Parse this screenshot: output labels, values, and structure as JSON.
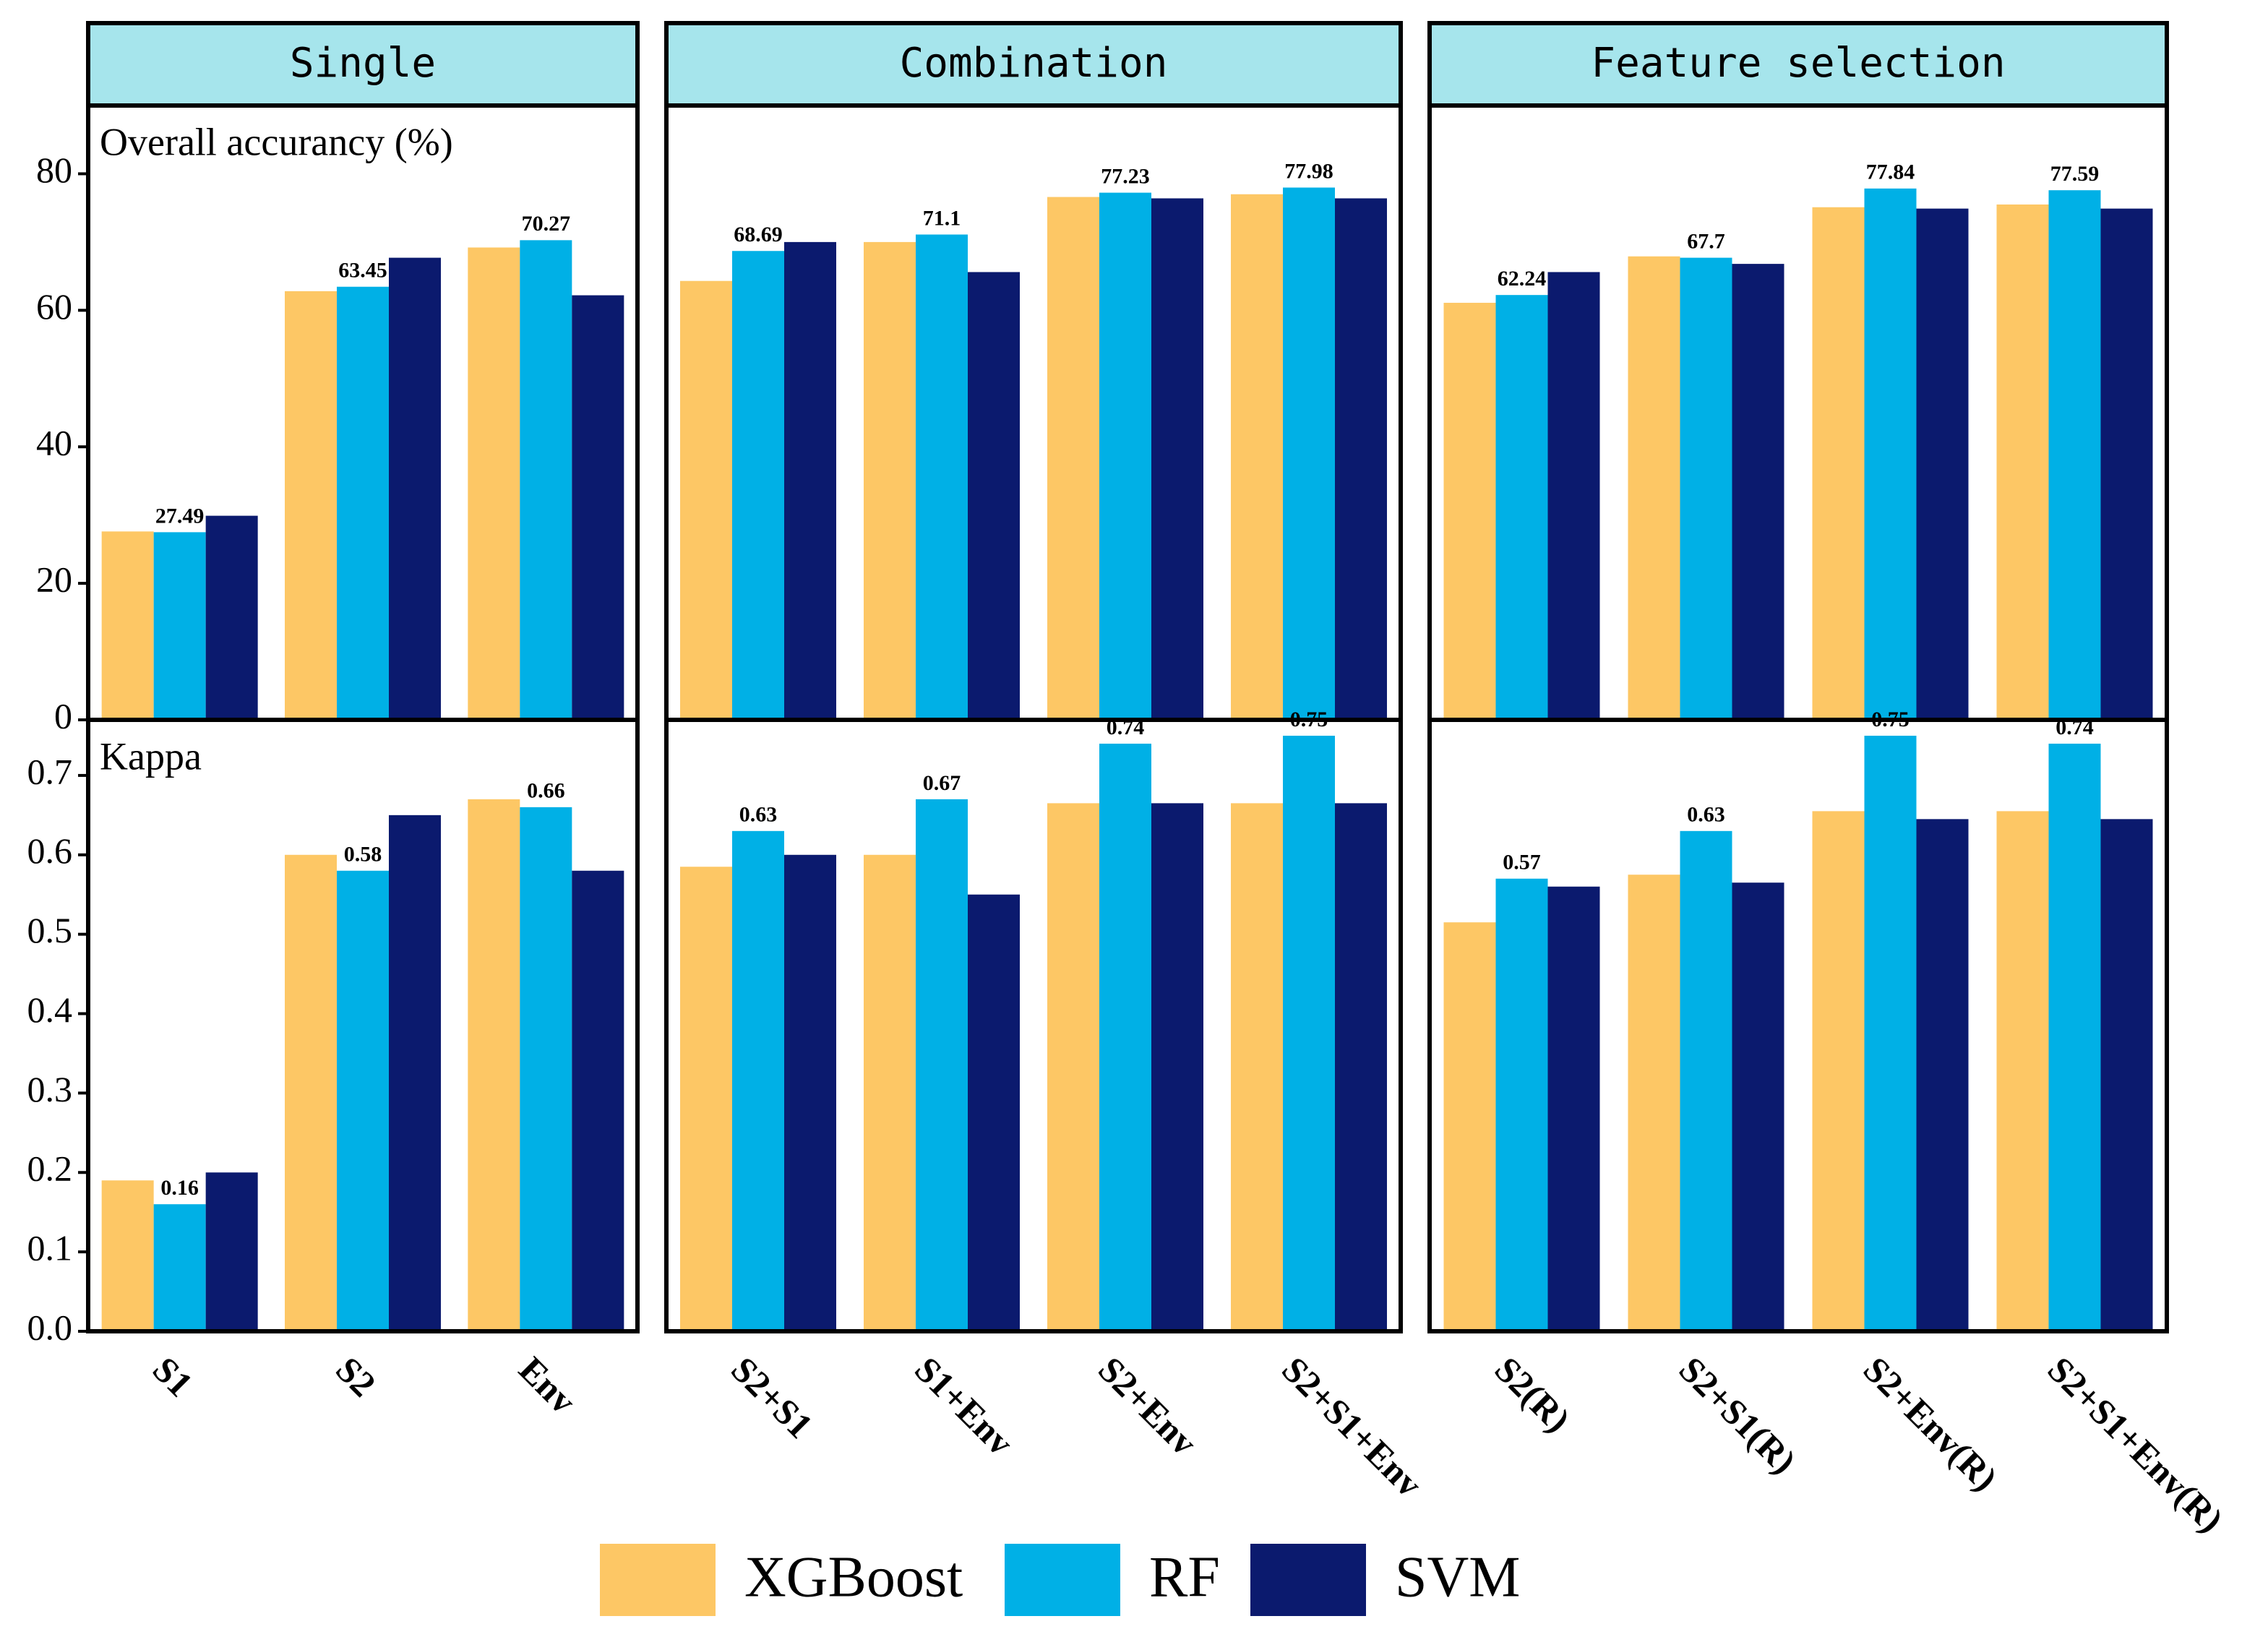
{
  "chart_data": {
    "type": "bar",
    "series": [
      {
        "name": "XGBoost",
        "color": "#fdc765"
      },
      {
        "name": "RF",
        "color": "#00b0e6"
      },
      {
        "name": "SVM",
        "color": "#0b1a6e"
      }
    ],
    "columns": [
      {
        "title": "Single",
        "categories": [
          "S1",
          "S2",
          "Env"
        ]
      },
      {
        "title": "Combination",
        "categories": [
          "S2+S1",
          "S1+Env",
          "S2+Env",
          "S2+S1+Env"
        ]
      },
      {
        "title": "Feature selection",
        "categories": [
          "S2(R)",
          "S2+S1(R)",
          "S2+Env(R)",
          "S2+S1+Env(R)"
        ]
      }
    ],
    "rows": [
      {
        "label": "Overall accurancy (%)",
        "ylim": [
          0,
          90
        ],
        "yticks": [
          0,
          20,
          40,
          60,
          80
        ],
        "panels": [
          {
            "values": [
              [
                27.6,
                62.8,
                69.2
              ],
              [
                27.49,
                63.45,
                70.27
              ],
              [
                29.9,
                67.7,
                62.2
              ]
            ]
          },
          {
            "values": [
              [
                64.3,
                70.0,
                76.6,
                77.0
              ],
              [
                68.69,
                71.1,
                77.23,
                77.98
              ],
              [
                70.0,
                65.6,
                76.4,
                76.4
              ]
            ]
          },
          {
            "values": [
              [
                61.1,
                67.9,
                75.1,
                75.5
              ],
              [
                62.24,
                67.7,
                77.84,
                77.59
              ],
              [
                65.6,
                66.8,
                74.9,
                74.9
              ]
            ]
          }
        ]
      },
      {
        "label": "Kappa",
        "ylim": [
          0,
          0.77
        ],
        "yticks": [
          {
            "value": 0,
            "label": "0.0"
          },
          0.1,
          0.2,
          0.3,
          0.4,
          0.5,
          0.6,
          0.7
        ],
        "panels": [
          {
            "values": [
              [
                0.19,
                0.6,
                0.67
              ],
              [
                0.16,
                0.58,
                0.66
              ],
              [
                0.2,
                0.65,
                0.58
              ]
            ]
          },
          {
            "values": [
              [
                0.585,
                0.6,
                0.665,
                0.665
              ],
              [
                0.63,
                0.67,
                0.74,
                0.75
              ],
              [
                0.6,
                0.55,
                0.665,
                0.665
              ]
            ]
          },
          {
            "values": [
              [
                0.515,
                0.575,
                0.655,
                0.655
              ],
              [
                0.57,
                0.63,
                0.75,
                0.74
              ],
              [
                0.56,
                0.565,
                0.645,
                0.645
              ]
            ]
          }
        ]
      }
    ]
  }
}
